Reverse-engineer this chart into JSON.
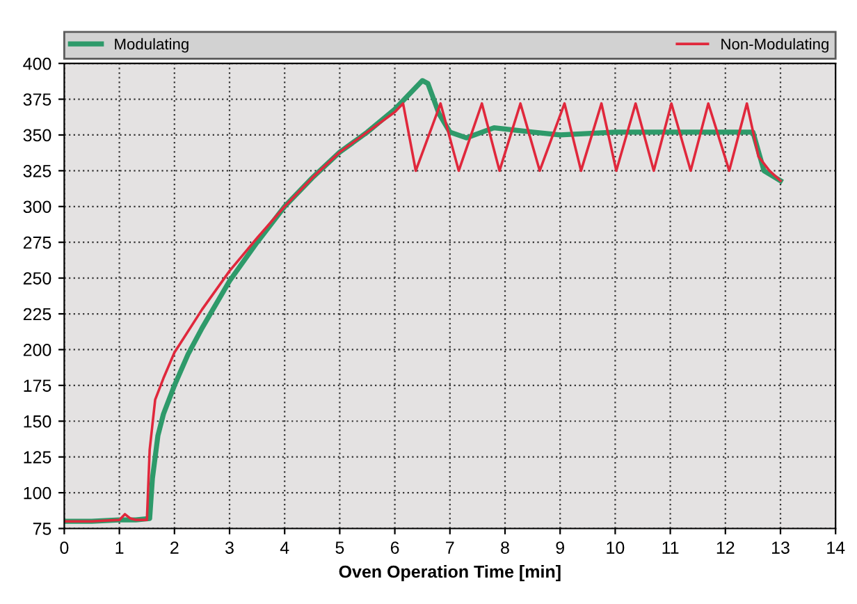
{
  "chart_data": {
    "type": "line",
    "xlabel": "Oven Operation Time [min]",
    "xlim": [
      0,
      14
    ],
    "xticks": [
      0,
      1,
      2,
      3,
      4,
      5,
      6,
      7,
      8,
      9,
      10,
      11,
      12,
      13,
      14
    ],
    "ylim": [
      75,
      400
    ],
    "yticks": [
      75,
      100,
      125,
      150,
      175,
      200,
      225,
      250,
      275,
      300,
      325,
      350,
      375,
      400
    ],
    "grid": true,
    "legend": "top",
    "line_style": "solid",
    "marker": "none",
    "series": [
      {
        "name": "Modulating",
        "color": "#2e9a6a",
        "x": [
          0,
          0.5,
          1,
          1.3,
          1.55,
          1.6,
          1.7,
          1.8,
          2,
          2.25,
          2.5,
          3,
          3.5,
          4,
          4.5,
          5,
          5.5,
          6,
          6.3,
          6.5,
          6.6,
          6.8,
          7,
          7.3,
          7.8,
          8.5,
          9,
          10,
          11,
          12,
          12.5,
          12.7,
          13
        ],
        "values": [
          80,
          80,
          81,
          81,
          82,
          110,
          140,
          155,
          175,
          197,
          215,
          248,
          275,
          300,
          320,
          338,
          352,
          368,
          380,
          388,
          386,
          365,
          352,
          348,
          355,
          352,
          350,
          352,
          352,
          352,
          352,
          325,
          318
        ]
      },
      {
        "name": "Non-Modulating",
        "color": "#e0283c",
        "x": [
          0,
          0.5,
          1,
          1.1,
          1.2,
          1.3,
          1.5,
          1.55,
          1.65,
          1.8,
          2,
          2.5,
          3,
          3.5,
          4,
          4.5,
          5,
          5.5,
          6,
          6.15,
          6.38,
          6.83,
          7.16,
          7.58,
          7.9,
          8.28,
          8.63,
          9.08,
          9.38,
          9.75,
          10.02,
          10.37,
          10.7,
          11.02,
          11.37,
          11.69,
          12.07,
          12.39,
          12.6,
          12.8,
          13
        ],
        "values": [
          80,
          80,
          81,
          85,
          82,
          81,
          81,
          130,
          165,
          180,
          198,
          228,
          255,
          278,
          300,
          320,
          338,
          352,
          366,
          372,
          325,
          372,
          325,
          372,
          325,
          372,
          325,
          372,
          325,
          372,
          325,
          372,
          325,
          372,
          325,
          372,
          325,
          372,
          335,
          325,
          318
        ]
      }
    ]
  }
}
